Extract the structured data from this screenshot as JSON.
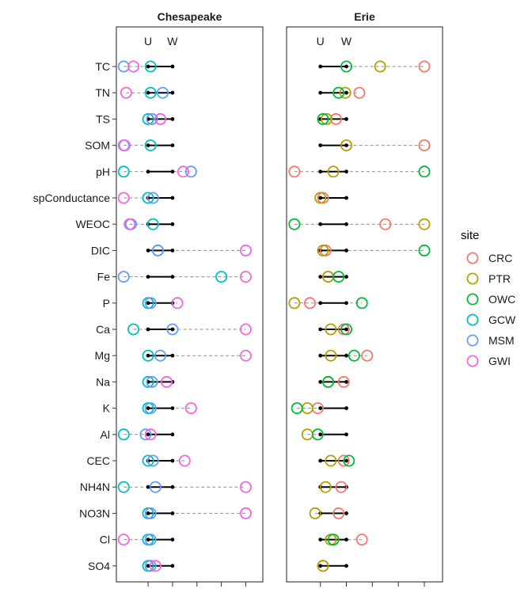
{
  "chart_data": {
    "type": "dot_range",
    "title": "",
    "xlabel": "",
    "ylabel": "",
    "grid": false,
    "legend_position": "right",
    "legend": {
      "title": "site",
      "entries": [
        {
          "name": "CRC",
          "color": "#F8766D"
        },
        {
          "name": "PTR",
          "color": "#B79F00"
        },
        {
          "name": "OWC",
          "color": "#00BA38"
        },
        {
          "name": "GCW",
          "color": "#00BFC4"
        },
        {
          "name": "MSM",
          "color": "#619CFF"
        },
        {
          "name": "GWI",
          "color": "#F564E3"
        }
      ]
    },
    "variables": [
      "TC",
      "TN",
      "TS",
      "SOM",
      "pH",
      "spConductance",
      "WEOC",
      "DIC",
      "Fe",
      "P",
      "Ca",
      "Mg",
      "Na",
      "K",
      "Al",
      "CEC",
      "NH4N",
      "NO3N",
      "Cl",
      "SO4"
    ],
    "panels": [
      {
        "name": "Chesapeake",
        "marker_labels": [
          "U",
          "W"
        ],
        "marker_values": [
          0,
          0.5
        ],
        "xlim": [
          -0.65,
          2.35
        ],
        "rows": [
          {
            "variable": "TC",
            "u": 0,
            "w": 0.5,
            "points": {
              "GCW": 0.05,
              "MSM": -0.5,
              "GWI": -0.3
            }
          },
          {
            "variable": "TN",
            "u": 0,
            "w": 0.5,
            "points": {
              "GCW": 0.05,
              "MSM": 0.3,
              "GWI": -0.45
            }
          },
          {
            "variable": "TS",
            "u": 0,
            "w": 0.5,
            "points": {
              "GCW": 0,
              "MSM": 0.08,
              "GWI": 0.25
            }
          },
          {
            "variable": "SOM",
            "u": 0,
            "w": 0.5,
            "points": {
              "GCW": 0.05,
              "MSM": -0.5,
              "GWI": -0.48
            }
          },
          {
            "variable": "pH",
            "u": 0,
            "w": 0.5,
            "points": {
              "GCW": -0.5,
              "MSM": 0.88,
              "GWI": 0.72
            }
          },
          {
            "variable": "spConductance",
            "u": 0,
            "w": 0.5,
            "points": {
              "GCW": 0,
              "MSM": 0.1,
              "GWI": -0.5
            }
          },
          {
            "variable": "WEOC",
            "u": 0,
            "w": 0.5,
            "points": {
              "GCW": 0.1,
              "MSM": -0.35,
              "GWI": -0.38
            }
          },
          {
            "variable": "DIC",
            "u": 0,
            "w": 0.5,
            "points": {
              "GCW": 0.2,
              "MSM": 0.2,
              "GWI": 2.0
            }
          },
          {
            "variable": "Fe",
            "u": 0,
            "w": 0.5,
            "points": {
              "GCW": 1.5,
              "MSM": -0.5,
              "GWI": 2.0
            }
          },
          {
            "variable": "P",
            "u": 0,
            "w": 0.5,
            "points": {
              "GCW": 0,
              "MSM": 0.05,
              "GWI": 0.6
            }
          },
          {
            "variable": "Ca",
            "u": 0,
            "w": 0.5,
            "points": {
              "GCW": -0.3,
              "MSM": 0.5,
              "GWI": 2.0
            }
          },
          {
            "variable": "Mg",
            "u": 0,
            "w": 0.5,
            "points": {
              "GCW": 0,
              "MSM": 0.25,
              "GWI": 2.0
            }
          },
          {
            "variable": "Na",
            "u": 0,
            "w": 0.5,
            "points": {
              "GCW": 0,
              "MSM": 0.08,
              "GWI": 0.38
            }
          },
          {
            "variable": "K",
            "u": 0,
            "w": 0.5,
            "points": {
              "GCW": 0,
              "MSM": 0.05,
              "GWI": 0.88
            }
          },
          {
            "variable": "Al",
            "u": 0,
            "w": 0.5,
            "points": {
              "GCW": -0.5,
              "MSM": -0.05,
              "GWI": 0.05
            }
          },
          {
            "variable": "CEC",
            "u": 0,
            "w": 0.5,
            "points": {
              "GCW": 0,
              "MSM": 0.1,
              "GWI": 0.75
            }
          },
          {
            "variable": "NH4N",
            "u": 0,
            "w": 0.5,
            "points": {
              "GCW": -0.5,
              "MSM": 0.15,
              "GWI": 2.0
            }
          },
          {
            "variable": "NO3N",
            "u": 0,
            "w": 0.5,
            "points": {
              "GCW": 0,
              "MSM": 0.05,
              "GWI": 2.0
            }
          },
          {
            "variable": "Cl",
            "u": 0,
            "w": 0.5,
            "points": {
              "GCW": 0,
              "MSM": 0.05,
              "GWI": -0.5
            }
          },
          {
            "variable": "SO4",
            "u": 0,
            "w": 0.5,
            "points": {
              "GCW": 0,
              "MSM": 0.05,
              "GWI": 0.15
            }
          }
        ]
      },
      {
        "name": "Erie",
        "marker_labels": [
          "U",
          "W"
        ],
        "marker_values": [
          0,
          0.5
        ],
        "xlim": [
          -0.65,
          2.35
        ],
        "rows": [
          {
            "variable": "TC",
            "u": 0,
            "w": 0.5,
            "points": {
              "CRC": 2.0,
              "PTR": 1.15,
              "OWC": 0.5
            }
          },
          {
            "variable": "TN",
            "u": 0,
            "w": 0.5,
            "points": {
              "CRC": 0.75,
              "PTR": 0.48,
              "OWC": 0.35
            }
          },
          {
            "variable": "TS",
            "u": 0,
            "w": 0.5,
            "points": {
              "CRC": 0.3,
              "PTR": 0.12,
              "OWC": 0.05
            }
          },
          {
            "variable": "SOM",
            "u": 0,
            "w": 0.5,
            "points": {
              "CRC": 2.0,
              "PTR": 0.5
            }
          },
          {
            "variable": "pH",
            "u": 0,
            "w": 0.5,
            "points": {
              "CRC": -0.5,
              "PTR": 0.25,
              "OWC": 2.0
            }
          },
          {
            "variable": "spConductance",
            "u": 0,
            "w": 0.5,
            "points": {
              "CRC": 0.05,
              "PTR": 0
            }
          },
          {
            "variable": "WEOC",
            "u": 0,
            "w": 0.5,
            "points": {
              "CRC": 1.25,
              "PTR": 2.0,
              "OWC": -0.5
            }
          },
          {
            "variable": "DIC",
            "u": 0,
            "w": 0.5,
            "points": {
              "CRC": 0.1,
              "PTR": 0.05,
              "OWC": 2.0
            }
          },
          {
            "variable": "Fe",
            "u": 0,
            "w": 0.5,
            "points": {
              "CRC": 0.15,
              "PTR": 0.15,
              "OWC": 0.35
            }
          },
          {
            "variable": "P",
            "u": 0,
            "w": 0.5,
            "points": {
              "CRC": -0.2,
              "PTR": -0.5,
              "OWC": 0.8
            }
          },
          {
            "variable": "Ca",
            "u": 0,
            "w": 0.5,
            "points": {
              "CRC": 0.45,
              "PTR": 0.2,
              "OWC": 0.5
            }
          },
          {
            "variable": "Mg",
            "u": 0,
            "w": 0.5,
            "points": {
              "CRC": 0.9,
              "PTR": 0.2,
              "OWC": 0.65
            }
          },
          {
            "variable": "Na",
            "u": 0,
            "w": 0.5,
            "points": {
              "CRC": 0.45,
              "PTR": 0.15,
              "OWC": 0.15
            }
          },
          {
            "variable": "K",
            "u": 0,
            "w": 0.5,
            "points": {
              "CRC": -0.05,
              "PTR": -0.25,
              "OWC": -0.45
            }
          },
          {
            "variable": "Al",
            "u": 0,
            "w": 0.5,
            "points": {
              "PTR": -0.25,
              "OWC": -0.05
            }
          },
          {
            "variable": "CEC",
            "u": 0,
            "w": 0.5,
            "points": {
              "CRC": 0.45,
              "PTR": 0.2,
              "OWC": 0.55
            }
          },
          {
            "variable": "NH4N",
            "u": 0,
            "w": 0.5,
            "points": {
              "CRC": 0.4,
              "PTR": 0.1
            }
          },
          {
            "variable": "NO3N",
            "u": 0,
            "w": 0.5,
            "points": {
              "CRC": 0.35,
              "PTR": -0.1
            }
          },
          {
            "variable": "Cl",
            "u": 0,
            "w": 0.5,
            "points": {
              "CRC": 0.8,
              "PTR": 0.2,
              "OWC": 0.25
            }
          },
          {
            "variable": "SO4",
            "u": 0,
            "w": 0.5,
            "points": {
              "CRC": 0.05,
              "PTR": 0.05
            }
          }
        ]
      }
    ]
  }
}
